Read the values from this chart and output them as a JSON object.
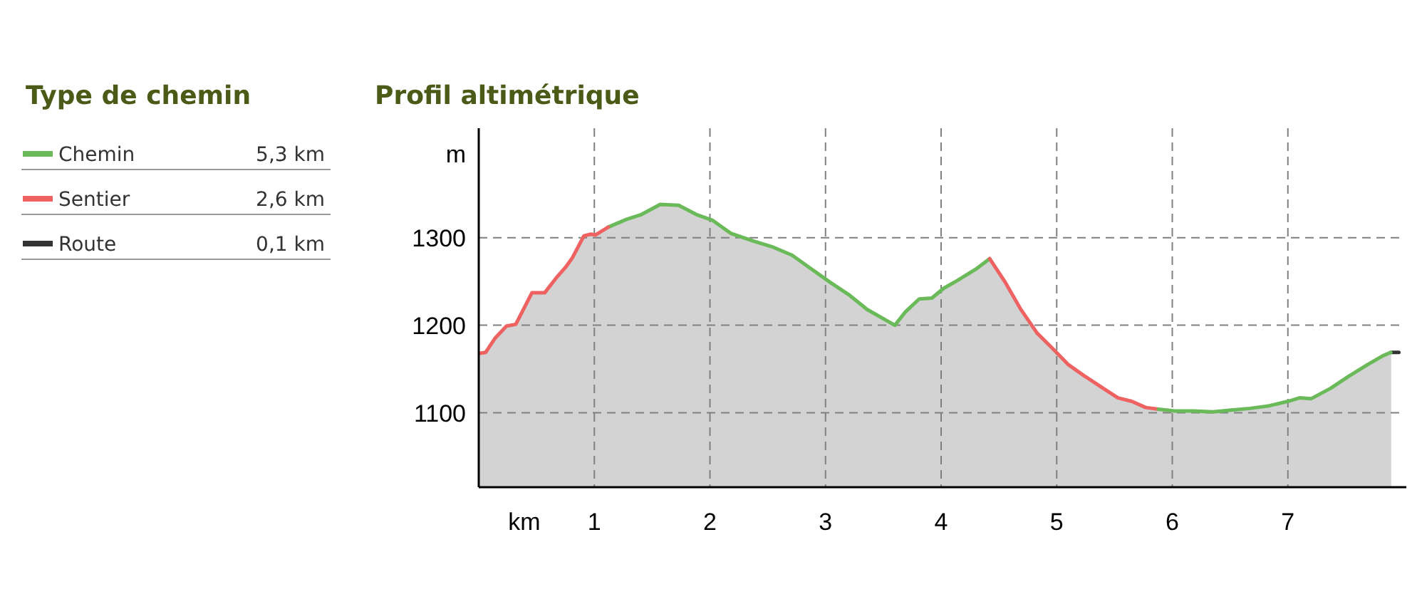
{
  "chart_data": {
    "type": "area",
    "title": "Profil altimétrique",
    "legend_title": "Type de chemin",
    "xlabel": "km",
    "ylabel": "m",
    "xlim": [
      0,
      8
    ],
    "ylim": [
      1015,
      1425
    ],
    "xticks": [
      1,
      2,
      3,
      4,
      5,
      6,
      7
    ],
    "yticks": [
      1100,
      1200,
      1300
    ],
    "grid": true,
    "legend": "left",
    "annotations": [
      "5,3 km",
      "2,6 km",
      "0,1 km"
    ],
    "series": [
      {
        "name": "Chemin",
        "color": "#6aba5a",
        "x": [
          1.12,
          1.28,
          1.4,
          1.57,
          1.73,
          1.89,
          2.02,
          2.18,
          2.38,
          2.55,
          2.71,
          2.87,
          3.04,
          3.2,
          3.36,
          3.6,
          3.69,
          3.81,
          3.92,
          4.02,
          4.14,
          4.3,
          4.42
        ],
        "values": [
          1312,
          1321,
          1326,
          1338,
          1337,
          1326,
          1320,
          1305,
          1296,
          1289,
          1280,
          1265,
          1249,
          1235,
          1218,
          1200,
          1215,
          1230,
          1231,
          1242,
          1251,
          1264,
          1276
        ]
      },
      {
        "name": "Sentier",
        "color": "#ee6262",
        "x": [
          0.01,
          0.06,
          0.14,
          0.24,
          0.32,
          0.46,
          0.57,
          0.67,
          0.75,
          0.81,
          0.91,
          0.97,
          1.01,
          1.12
        ],
        "values": [
          1168,
          1169,
          1185,
          1199,
          1201,
          1237,
          1237,
          1254,
          1266,
          1277,
          1302,
          1304,
          1303,
          1312
        ]
      },
      {
        "name": "Route",
        "type": "line",
        "color": "#333333",
        "x": [
          7.89,
          7.96
        ],
        "values": [
          1169,
          1169
        ]
      },
      {
        "color": "#ee6262",
        "x": [
          4.42,
          4.55,
          4.69,
          4.83,
          4.96,
          5.1,
          5.24,
          5.39,
          5.53,
          5.65,
          5.77,
          5.88
        ],
        "values": [
          1276,
          1250,
          1218,
          1191,
          1174,
          1155,
          1142,
          1129,
          1117,
          1113,
          1106,
          1104
        ]
      },
      {
        "color": "#6aba5a",
        "x": [
          5.88,
          6.02,
          6.18,
          6.35,
          6.51,
          6.67,
          6.84,
          7.0,
          7.1,
          7.2,
          7.37,
          7.53,
          7.69,
          7.82,
          7.89
        ],
        "values": [
          1104,
          1102,
          1102,
          1101,
          1103,
          1105,
          1108,
          1113,
          1117,
          1116,
          1128,
          1142,
          1155,
          1165,
          1169
        ]
      }
    ]
  }
}
